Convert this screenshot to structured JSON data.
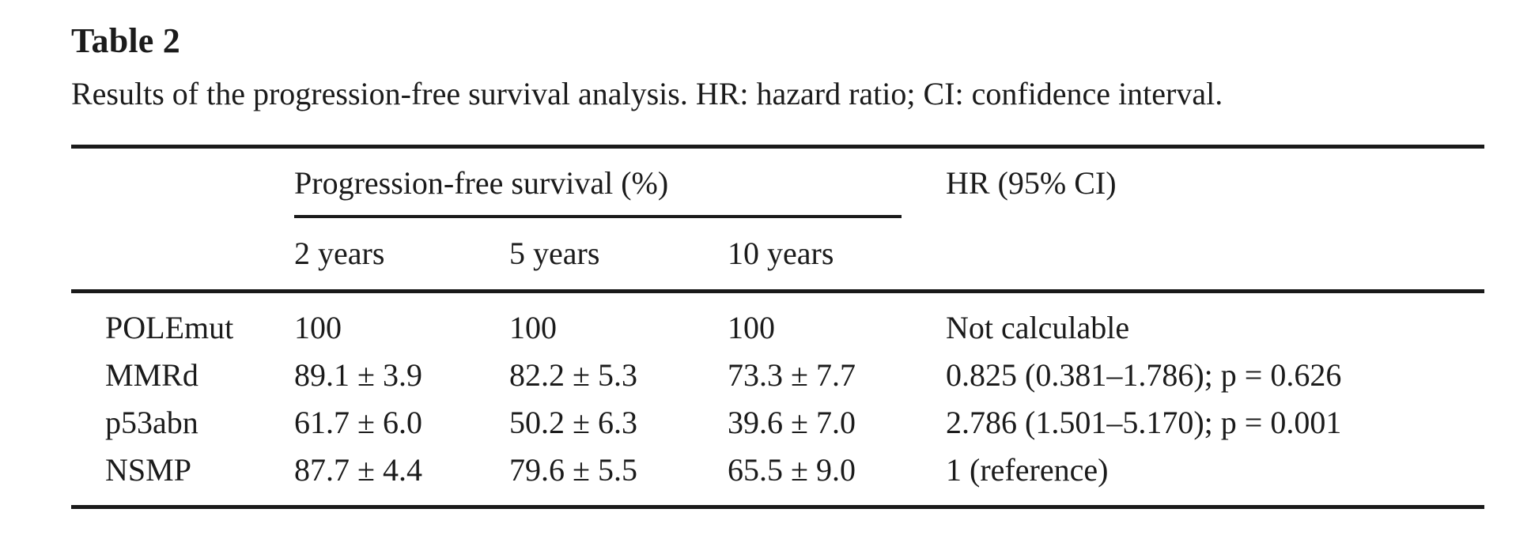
{
  "page": {
    "background_color": "#ffffff",
    "text_color": "#1b1b1b",
    "rule_color": "#1a1a1a"
  },
  "title": "Table 2",
  "caption": "Results of the progression-free survival analysis. HR: hazard ratio; CI: confidence interval.",
  "table": {
    "group_header": "Progression-free survival (%)",
    "hr_header": "HR (95% CI)",
    "sub_headers": [
      "2 years",
      "5 years",
      "10 years"
    ],
    "rows": [
      {
        "label": "POLEmut",
        "values": [
          "100",
          "100",
          "100"
        ],
        "hr": "Not calculable"
      },
      {
        "label": "MMRd",
        "values": [
          "89.1 ± 3.9",
          "82.2 ± 5.3",
          "73.3 ± 7.7"
        ],
        "hr": "0.825 (0.381–1.786); p = 0.626"
      },
      {
        "label": "p53abn",
        "values": [
          "61.7 ± 6.0",
          "50.2 ± 6.3",
          "39.6 ± 7.0"
        ],
        "hr": "2.786 (1.501–5.170); p = 0.001"
      },
      {
        "label": "NSMP",
        "values": [
          "87.7 ± 4.4",
          "79.6 ± 5.5",
          "65.5 ± 9.0"
        ],
        "hr": "1 (reference)"
      }
    ]
  }
}
